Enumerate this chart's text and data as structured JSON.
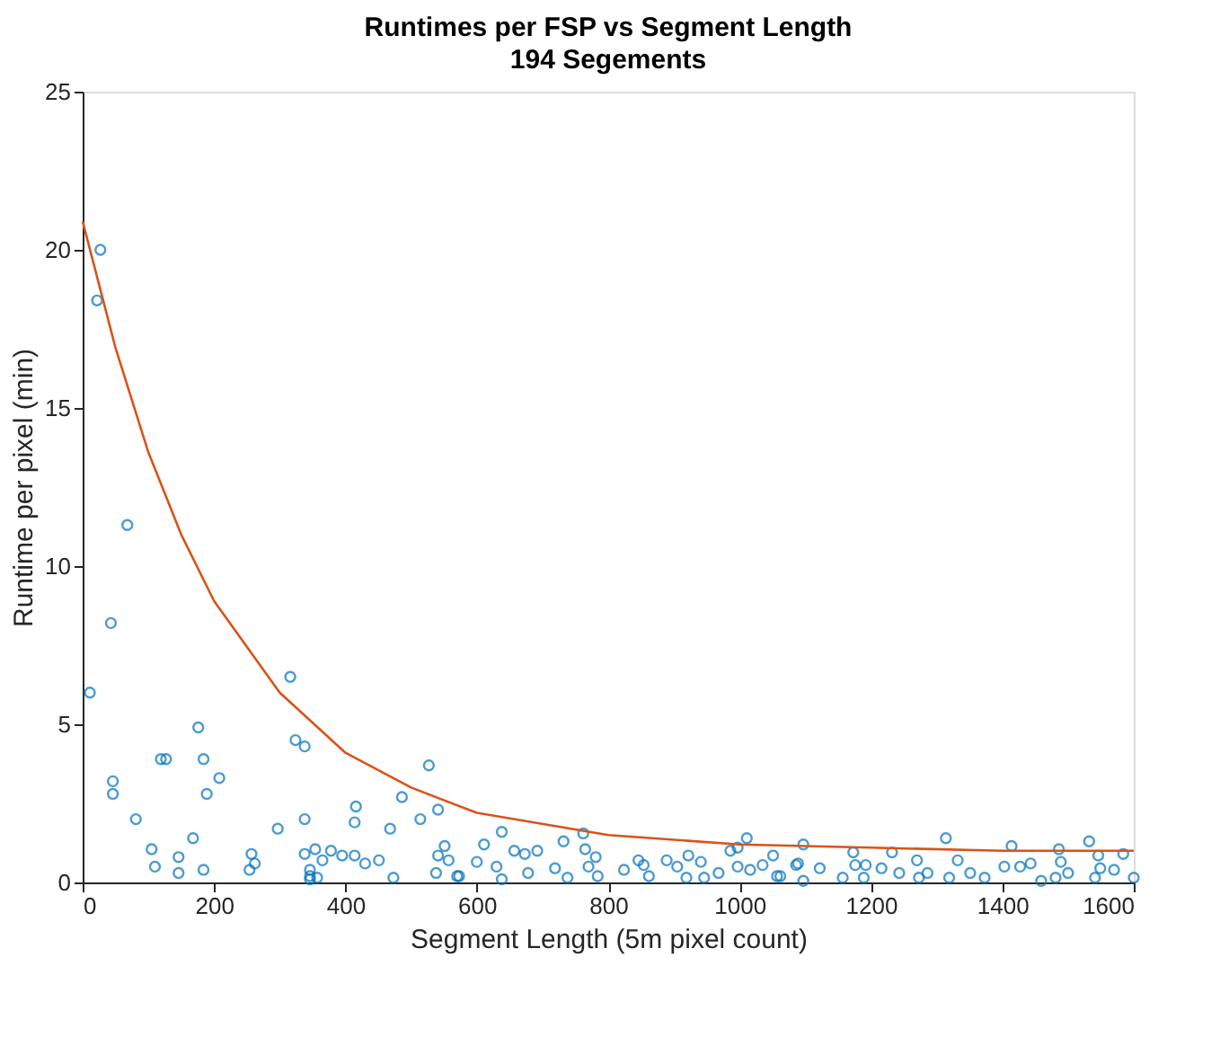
{
  "chart_data": {
    "type": "scatter",
    "title": "Runtimes per FSP vs Segment Length",
    "subtitle": "194 Segements",
    "xlabel": "Segment Length (5m pixel count)",
    "ylabel": "Runtime per pixel (min)",
    "xlim": [
      0,
      1600
    ],
    "ylim": [
      0,
      25
    ],
    "xticks": [
      0,
      200,
      400,
      600,
      800,
      1000,
      1200,
      1400,
      1600
    ],
    "yticks": [
      0,
      5,
      10,
      15,
      20,
      25
    ],
    "grid": false,
    "marker": "circle",
    "series": [
      {
        "color": "#0072bd",
        "x": [
          11,
          27,
          22,
          68,
          43,
          46,
          46,
          81,
          105,
          110,
          146,
          146,
          119,
          127,
          168,
          176,
          184,
          189,
          208,
          184,
          257,
          254,
          262,
          297,
          316,
          324,
          338,
          338,
          338,
          346,
          346,
          346,
          354,
          357,
          365,
          378,
          395,
          414,
          416,
          414,
          430,
          451,
          468,
          473,
          486,
          514,
          527,
          541,
          541,
          551,
          557,
          538,
          570,
          573,
          600,
          611,
          630,
          638,
          638,
          657,
          673,
          678,
          692,
          719,
          732,
          738,
          762,
          765,
          781,
          770,
          784,
          824,
          846,
          854,
          862,
          889,
          905,
          922,
          919,
          941,
          946,
          968,
          986,
          997,
          997,
          1011,
          1016,
          1035,
          1051,
          1057,
          1086,
          1062,
          1089,
          1097,
          1097,
          1122,
          1157,
          1173,
          1176,
          1192,
          1189,
          1216,
          1232,
          1243,
          1270,
          1286,
          1273,
          1314,
          1332,
          1319,
          1351,
          1373,
          1403,
          1414,
          1427,
          1443,
          1459,
          1486,
          1489,
          1500,
          1481,
          1532,
          1546,
          1549,
          1541,
          1570,
          1584,
          1600
        ],
        "values": [
          6.0,
          20.0,
          18.4,
          11.3,
          8.2,
          3.2,
          2.8,
          2.0,
          1.05,
          0.5,
          0.8,
          0.3,
          3.9,
          3.9,
          1.4,
          4.9,
          3.9,
          2.8,
          3.3,
          0.4,
          0.9,
          0.4,
          0.6,
          1.7,
          6.5,
          4.5,
          4.3,
          2.0,
          0.9,
          0.4,
          0.2,
          0.1,
          1.05,
          0.15,
          0.7,
          1.0,
          0.85,
          0.85,
          2.4,
          1.9,
          0.6,
          0.7,
          1.7,
          0.15,
          2.7,
          2.0,
          3.7,
          2.3,
          0.85,
          1.15,
          0.7,
          0.3,
          0.2,
          0.2,
          0.65,
          1.2,
          0.5,
          1.6,
          0.1,
          1.0,
          0.9,
          0.3,
          1.0,
          0.45,
          1.3,
          0.15,
          1.55,
          1.05,
          0.8,
          0.5,
          0.2,
          0.4,
          0.7,
          0.55,
          0.2,
          0.7,
          0.5,
          0.85,
          0.15,
          0.65,
          0.15,
          0.3,
          1.0,
          1.1,
          0.5,
          1.4,
          0.4,
          0.55,
          0.85,
          0.2,
          0.55,
          0.2,
          0.6,
          1.2,
          0.05,
          0.45,
          0.15,
          0.95,
          0.55,
          0.55,
          0.15,
          0.45,
          0.95,
          0.3,
          0.7,
          0.3,
          0.15,
          1.4,
          0.7,
          0.15,
          0.3,
          0.15,
          0.5,
          1.15,
          0.5,
          0.6,
          0.05,
          1.05,
          0.65,
          0.3,
          0.15,
          1.3,
          0.85,
          0.45,
          0.15,
          0.4,
          0.9,
          0.15
        ]
      },
      {
        "type": "line",
        "color": "#d95319",
        "marker": "none",
        "line_style": "solid",
        "x": [
          0,
          50,
          100,
          150,
          200,
          300,
          400,
          500,
          600,
          800,
          1000,
          1200,
          1400,
          1600
        ],
        "values": [
          20.9,
          16.9,
          13.6,
          11.0,
          8.9,
          6.0,
          4.1,
          3.0,
          2.2,
          1.5,
          1.2,
          1.1,
          1.0,
          1.0
        ]
      }
    ]
  }
}
